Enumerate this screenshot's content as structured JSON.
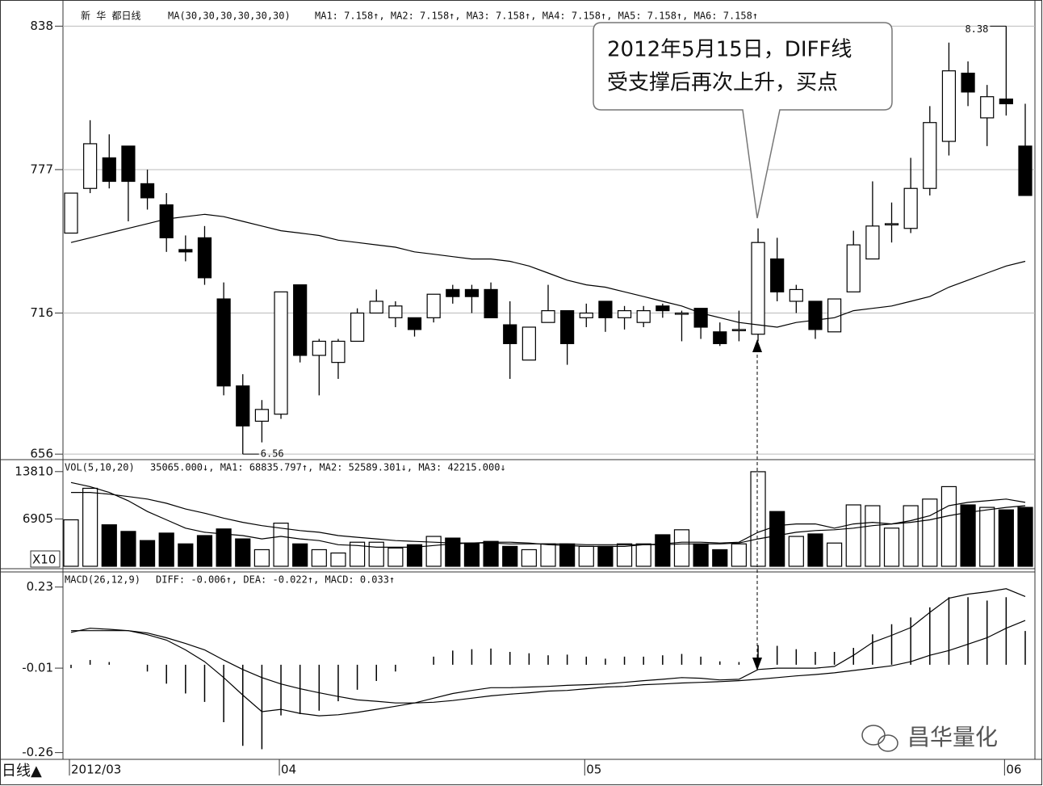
{
  "chart_data": [
    {
      "type": "candlestick",
      "title": "新 华 都日线",
      "readout": "MA1: 7.158↑, MA2: 7.158↑, MA3: 7.158↑, MA4: 7.158↑, MA5: 7.158↑, MA6: 7.158↑",
      "open": [
        750,
        769,
        782,
        787,
        771,
        762,
        743,
        748,
        722,
        685,
        670,
        673,
        728,
        698,
        695,
        704,
        716,
        714,
        714,
        714,
        726,
        726,
        726,
        711,
        696,
        712,
        717,
        714,
        721,
        714,
        712,
        719,
        716,
        718,
        708,
        709,
        707,
        739,
        721,
        721,
        708,
        725,
        739,
        754,
        752,
        769,
        789,
        818,
        799,
        807,
        787
      ],
      "high": [
        767,
        798,
        792,
        787,
        777,
        767,
        749,
        753,
        729,
        690,
        679,
        725,
        728,
        705,
        705,
        718,
        726,
        721,
        714,
        724,
        728,
        728,
        729,
        721,
        710,
        728,
        717,
        720,
        721,
        719,
        719,
        720,
        717,
        718,
        712,
        717,
        752,
        748,
        728,
        721,
        722,
        751,
        772,
        763,
        782,
        804,
        831,
        823,
        813,
        838,
        805
      ],
      "low": [
        750,
        767,
        769,
        755,
        760,
        742,
        738,
        728,
        681,
        656,
        661,
        671,
        695,
        681,
        688,
        704,
        716,
        710,
        706,
        712,
        720,
        716,
        714,
        688,
        696,
        712,
        694,
        710,
        708,
        709,
        710,
        714,
        704,
        705,
        702,
        704,
        704,
        721,
        716,
        705,
        708,
        725,
        739,
        746,
        750,
        766,
        783,
        804,
        787,
        800,
        766
      ],
      "close": [
        767,
        788,
        772,
        772,
        765,
        748,
        742,
        731,
        685,
        668,
        675,
        725,
        698,
        704,
        704,
        716,
        721,
        719,
        709,
        724,
        723,
        723,
        714,
        703,
        710,
        717,
        703,
        716,
        714,
        717,
        717,
        717,
        716,
        710,
        703,
        709,
        746,
        725,
        726,
        709,
        722,
        745,
        753,
        754,
        769,
        797,
        819,
        810,
        808,
        805,
        766
      ],
      "series": [
        {
          "name": "MA(30,30,30,30,30,30)",
          "color": "#000000",
          "values": [
            746,
            748,
            750,
            752,
            754,
            756,
            757,
            758,
            757,
            755,
            753,
            751,
            750,
            749,
            747,
            746,
            745,
            744,
            742,
            741,
            740,
            739,
            739,
            738,
            736,
            733,
            730,
            728,
            727,
            725,
            723,
            721,
            719,
            716,
            714,
            712,
            711,
            710,
            712,
            713,
            714,
            717,
            718,
            719,
            721,
            723,
            727,
            730,
            733,
            736,
            738
          ]
        }
      ],
      "low_label": "6.56",
      "high_label": "8.38",
      "ylim": [
        654,
        845
      ],
      "yticks": [
        656,
        716,
        777,
        838
      ],
      "grid": true
    },
    {
      "type": "bar",
      "title": "VOL(5,10,20)",
      "readout": "35065.000↓, MA1: 68835.797↑, MA2: 52589.301↓, MA3: 42215.000↓",
      "unit_label": "X10",
      "values": [
        6776,
        11374,
        6050,
        5082,
        3751,
        4840,
        3267,
        4477,
        5445,
        3993,
        2420,
        6292,
        3267,
        2420,
        1936,
        3509,
        3509,
        2662,
        3146,
        4356,
        4114,
        3388,
        3630,
        2904,
        2420,
        3267,
        3267,
        2904,
        2904,
        3267,
        3267,
        4598,
        5324,
        3267,
        2420,
        3267,
        13794,
        7986,
        4356,
        4719,
        3388,
        8954,
        8833,
        5566,
        8833,
        9801,
        11616,
        8954,
        8591,
        8228,
        8591
      ],
      "lines": [
        [
          12221,
          11616,
          10769,
          9559,
          7986,
          6776,
          5566,
          4961,
          4719,
          4477,
          3993,
          4356,
          3993,
          3751,
          3146,
          3025,
          2783,
          2783,
          2783,
          3025,
          3267,
          3388,
          3509,
          3509,
          3388,
          3146,
          3025,
          2904,
          2904,
          2904,
          3146,
          3267,
          3509,
          3509,
          3388,
          3509,
          4961,
          5929,
          6171,
          6171,
          5566,
          6171,
          6413,
          6171,
          6655,
          7381,
          8833,
          9317,
          9559,
          9801,
          9317
        ],
        [
          10769,
          10769,
          10527,
          10164,
          9801,
          9196,
          8349,
          7744,
          7018,
          6413,
          5929,
          5566,
          5203,
          4961,
          4477,
          4235,
          3993,
          3751,
          3630,
          3509,
          3388,
          3388,
          3388,
          3267,
          3267,
          3267,
          3267,
          3146,
          3146,
          3146,
          3146,
          3146,
          3267,
          3267,
          3267,
          3388,
          3993,
          4477,
          4961,
          5203,
          5324,
          5566,
          5929,
          6171,
          6413,
          6776,
          7381,
          7865,
          8228,
          8591,
          8833
        ]
      ],
      "ylim": [
        0,
        15200
      ],
      "yticks": [
        6905,
        13810
      ]
    },
    {
      "type": "macd",
      "title": "MACD(26,12,9)",
      "readout": "DIFF: -0.006↑, DEA: -0.022↑, MACD: 0.033↑",
      "categories": [
        "2012/03",
        null,
        null,
        null,
        null,
        null,
        null,
        null,
        null,
        null,
        null,
        "04",
        null,
        null,
        null,
        null,
        null,
        null,
        null,
        null,
        null,
        null,
        null,
        null,
        null,
        null,
        null,
        "05",
        null,
        null,
        null,
        null,
        null,
        null,
        null,
        null,
        null,
        null,
        null,
        null,
        null,
        null,
        null,
        null,
        null,
        null,
        null,
        null,
        null,
        "06",
        null
      ],
      "values": [
        -0.01,
        0.014,
        0.008,
        0,
        -0.02,
        -0.056,
        -0.085,
        -0.11,
        -0.17,
        -0.24,
        -0.25,
        -0.15,
        -0.146,
        -0.136,
        -0.108,
        -0.074,
        -0.048,
        -0.02,
        0,
        0.024,
        0.042,
        0.046,
        0.048,
        0.038,
        0.034,
        0.028,
        0.03,
        0.024,
        0.018,
        0.024,
        0.024,
        0.028,
        0.032,
        0.024,
        0.01,
        0.008,
        0.058,
        0.056,
        0.046,
        0.038,
        0.038,
        0.05,
        0.09,
        0.12,
        0.14,
        0.17,
        0.2,
        0.2,
        0.19,
        0.2,
        0.1
      ],
      "diff": [
        0.096,
        0.108,
        0.105,
        0.101,
        0.089,
        0.073,
        0.044,
        0.009,
        -0.038,
        -0.09,
        -0.139,
        -0.132,
        -0.144,
        -0.151,
        -0.148,
        -0.141,
        -0.132,
        -0.123,
        -0.113,
        -0.099,
        -0.085,
        -0.076,
        -0.068,
        -0.068,
        -0.066,
        -0.064,
        -0.061,
        -0.059,
        -0.057,
        -0.052,
        -0.047,
        -0.043,
        -0.038,
        -0.04,
        -0.045,
        -0.043,
        -0.014,
        -0.01,
        -0.01,
        -0.01,
        -0.005,
        0.028,
        0.066,
        0.087,
        0.11,
        0.155,
        0.197,
        0.209,
        0.216,
        0.225,
        0.202
      ],
      "dea": [
        0.101,
        0.101,
        0.101,
        0.101,
        0.094,
        0.08,
        0.063,
        0.044,
        0.014,
        -0.014,
        -0.038,
        -0.057,
        -0.071,
        -0.083,
        -0.094,
        -0.104,
        -0.108,
        -0.113,
        -0.113,
        -0.111,
        -0.106,
        -0.099,
        -0.092,
        -0.087,
        -0.083,
        -0.078,
        -0.076,
        -0.071,
        -0.066,
        -0.064,
        -0.059,
        -0.057,
        -0.054,
        -0.052,
        -0.05,
        -0.047,
        -0.043,
        -0.038,
        -0.033,
        -0.029,
        -0.024,
        -0.017,
        -0.01,
        -0.003,
        0.009,
        0.028,
        0.042,
        0.061,
        0.08,
        0.108,
        0.131
      ],
      "ylim": [
        -0.28,
        0.27
      ],
      "yticks": [
        0.23,
        -0.01,
        -0.26
      ]
    }
  ],
  "annotation": {
    "lines": [
      "2012年5月15日，DIFF线",
      "受支撑后再次上升，买点"
    ]
  },
  "footer": {
    "period": "日线▲",
    "watermark": "昌华量化"
  }
}
